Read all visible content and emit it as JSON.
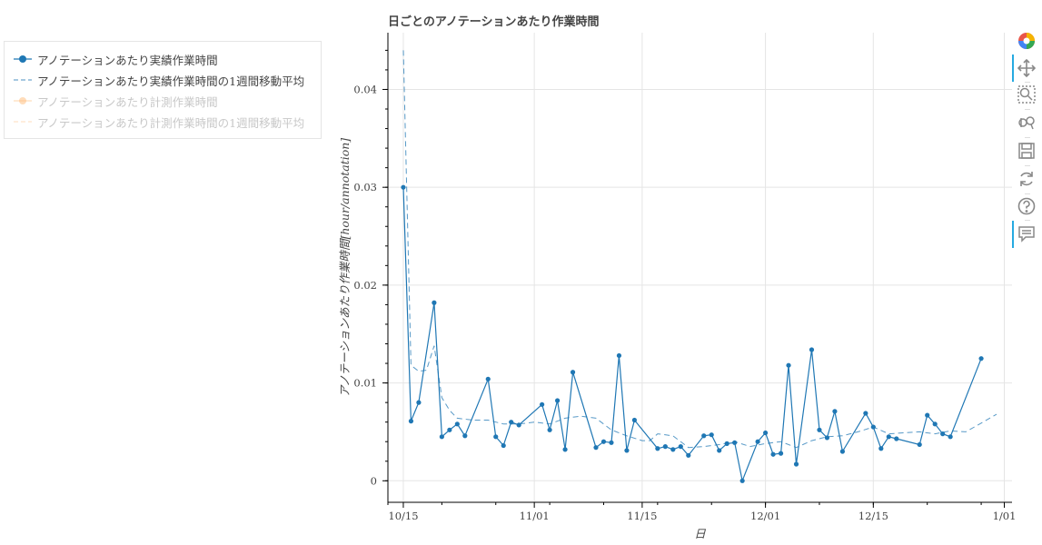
{
  "chart_data": {
    "type": "line",
    "title": "日ごとのアノテーションあたり作業時間",
    "xlabel": "日",
    "ylabel": "アノテーションあたり作業時間[hour/annotation]",
    "x_ticks": [
      "10/15",
      "11/01",
      "11/15",
      "12/01",
      "12/15",
      "1/01"
    ],
    "y_ticks": [
      "0",
      "0.01",
      "0.02",
      "0.03",
      "0.04"
    ],
    "ylim": [
      -0.0022,
      0.0458
    ],
    "xlim": [
      "2020-10-13",
      "2021-01-02"
    ],
    "grid": true,
    "legend_position": "left of plot",
    "series": [
      {
        "name": "アノテーションあたり実績作業時間",
        "style": "line+markers",
        "color": "#1f77b4",
        "visible": true,
        "points": [
          [
            "2020-10-15",
            0.03
          ],
          [
            "2020-10-16",
            0.0061
          ],
          [
            "2020-10-17",
            0.008
          ],
          [
            "2020-10-19",
            0.0182
          ],
          [
            "2020-10-20",
            0.0045
          ],
          [
            "2020-10-21",
            0.0052
          ],
          [
            "2020-10-22",
            0.0058
          ],
          [
            "2020-10-23",
            0.0046
          ],
          [
            "2020-10-26",
            0.0104
          ],
          [
            "2020-10-27",
            0.0045
          ],
          [
            "2020-10-28",
            0.0036
          ],
          [
            "2020-10-29",
            0.006
          ],
          [
            "2020-10-30",
            0.0057
          ],
          [
            "2020-11-02",
            0.0078
          ],
          [
            "2020-11-03",
            0.0052
          ],
          [
            "2020-11-04",
            0.0082
          ],
          [
            "2020-11-05",
            0.0032
          ],
          [
            "2020-11-06",
            0.0111
          ],
          [
            "2020-11-09",
            0.0034
          ],
          [
            "2020-11-10",
            0.004
          ],
          [
            "2020-11-11",
            0.0039
          ],
          [
            "2020-11-12",
            0.0128
          ],
          [
            "2020-11-13",
            0.0031
          ],
          [
            "2020-11-14",
            0.0062
          ],
          [
            "2020-11-17",
            0.0033
          ],
          [
            "2020-11-18",
            0.0035
          ],
          [
            "2020-11-19",
            0.0032
          ],
          [
            "2020-11-20",
            0.0035
          ],
          [
            "2020-11-21",
            0.0026
          ],
          [
            "2020-11-23",
            0.0046
          ],
          [
            "2020-11-24",
            0.0047
          ],
          [
            "2020-11-25",
            0.0031
          ],
          [
            "2020-11-26",
            0.0038
          ],
          [
            "2020-11-27",
            0.0039
          ],
          [
            "2020-11-28",
            0.0
          ],
          [
            "2020-11-30",
            0.004
          ],
          [
            "2020-12-01",
            0.0049
          ],
          [
            "2020-12-02",
            0.0027
          ],
          [
            "2020-12-03",
            0.0028
          ],
          [
            "2020-12-04",
            0.0118
          ],
          [
            "2020-12-05",
            0.0017
          ],
          [
            "2020-12-07",
            0.0134
          ],
          [
            "2020-12-08",
            0.0052
          ],
          [
            "2020-12-09",
            0.0044
          ],
          [
            "2020-12-10",
            0.0071
          ],
          [
            "2020-12-11",
            0.003
          ],
          [
            "2020-12-14",
            0.0069
          ],
          [
            "2020-12-15",
            0.0055
          ],
          [
            "2020-12-16",
            0.0033
          ],
          [
            "2020-12-17",
            0.0045
          ],
          [
            "2020-12-18",
            0.0043
          ],
          [
            "2020-12-21",
            0.0037
          ],
          [
            "2020-12-22",
            0.0067
          ],
          [
            "2020-12-23",
            0.0058
          ],
          [
            "2020-12-24",
            0.0048
          ],
          [
            "2020-12-25",
            0.0045
          ],
          [
            "2020-12-29",
            0.0125
          ]
        ]
      },
      {
        "name": "アノテーションあたり実績作業時間の1週間移動平均",
        "style": "dashed",
        "color": "#1f77b4",
        "visible": true,
        "points": [
          [
            "2020-10-15",
            0.044
          ],
          [
            "2020-10-16",
            0.0118
          ],
          [
            "2020-10-17",
            0.0112
          ],
          [
            "2020-10-18",
            0.0113
          ],
          [
            "2020-10-19",
            0.0138
          ],
          [
            "2020-10-20",
            0.0085
          ],
          [
            "2020-10-21",
            0.0072
          ],
          [
            "2020-10-22",
            0.0064
          ],
          [
            "2020-10-24",
            0.0062
          ],
          [
            "2020-10-26",
            0.0062
          ],
          [
            "2020-10-28",
            0.0058
          ],
          [
            "2020-10-30",
            0.0058
          ],
          [
            "2020-11-01",
            0.006
          ],
          [
            "2020-11-03",
            0.0058
          ],
          [
            "2020-11-05",
            0.0064
          ],
          [
            "2020-11-07",
            0.0066
          ],
          [
            "2020-11-09",
            0.0064
          ],
          [
            "2020-11-11",
            0.0052
          ],
          [
            "2020-11-13",
            0.0046
          ],
          [
            "2020-11-15",
            0.0041
          ],
          [
            "2020-11-16",
            0.0041
          ],
          [
            "2020-11-17",
            0.0048
          ],
          [
            "2020-11-19",
            0.0046
          ],
          [
            "2020-11-21",
            0.0034
          ],
          [
            "2020-11-23",
            0.0035
          ],
          [
            "2020-11-25",
            0.0037
          ],
          [
            "2020-11-27",
            0.004
          ],
          [
            "2020-11-29",
            0.0035
          ],
          [
            "2020-12-01",
            0.0038
          ],
          [
            "2020-12-03",
            0.004
          ],
          [
            "2020-12-05",
            0.0034
          ],
          [
            "2020-12-07",
            0.0041
          ],
          [
            "2020-12-09",
            0.0045
          ],
          [
            "2020-12-11",
            0.0046
          ],
          [
            "2020-12-13",
            0.005
          ],
          [
            "2020-12-15",
            0.0055
          ],
          [
            "2020-12-17",
            0.0048
          ],
          [
            "2020-12-19",
            0.0049
          ],
          [
            "2020-12-21",
            0.005
          ],
          [
            "2020-12-23",
            0.0048
          ],
          [
            "2020-12-25",
            0.0051
          ],
          [
            "2020-12-27",
            0.005
          ],
          [
            "2020-12-29",
            0.0059
          ],
          [
            "2020-12-31",
            0.0068
          ]
        ]
      },
      {
        "name": "アノテーションあたり計測作業時間",
        "style": "line+markers",
        "color": "#ffbb78",
        "visible": false,
        "points": []
      },
      {
        "name": "アノテーションあたり計測作業時間の1週間移動平均",
        "style": "dashed",
        "color": "#ffbb78",
        "visible": false,
        "points": []
      }
    ]
  },
  "toolbar": {
    "tools": [
      "bokeh-logo-icon",
      "pan-icon",
      "box-zoom-icon",
      "wheel-zoom-icon",
      "save-icon",
      "reset-icon",
      "help-icon",
      "hover-icon"
    ],
    "accent": "#26aae1"
  }
}
